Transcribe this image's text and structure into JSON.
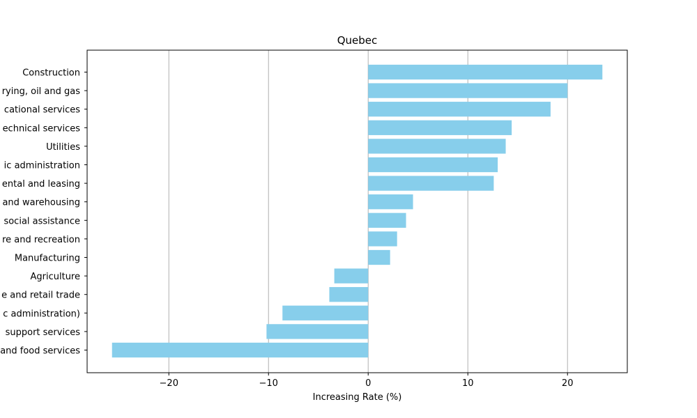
{
  "chart_data": {
    "type": "bar",
    "orientation": "horizontal",
    "title": "Quebec",
    "xlabel": "Increasing Rate (%)",
    "ylabel": "",
    "xlim": [
      -28.2,
      26.0
    ],
    "xticks": [
      -20,
      -10,
      0,
      10,
      20
    ],
    "xtick_labels": [
      "−20",
      "−10",
      "0",
      "10",
      "20"
    ],
    "grid": "vertical",
    "bar_color": "#87CEEB",
    "categories": [
      "Construction",
      "rying, oil and gas",
      "cational services",
      "echnical services",
      "Utilities",
      "ic administration",
      "ental and leasing",
      "and warehousing",
      "social assistance",
      "re and recreation",
      "Manufacturing",
      "Agriculture",
      "e and retail trade",
      "c administration)",
      "support services",
      "and food services"
    ],
    "values": [
      23.5,
      20.0,
      18.3,
      14.4,
      13.8,
      13.0,
      12.6,
      4.5,
      3.8,
      2.9,
      2.2,
      -3.4,
      -3.9,
      -8.6,
      -10.2,
      -25.7
    ]
  }
}
